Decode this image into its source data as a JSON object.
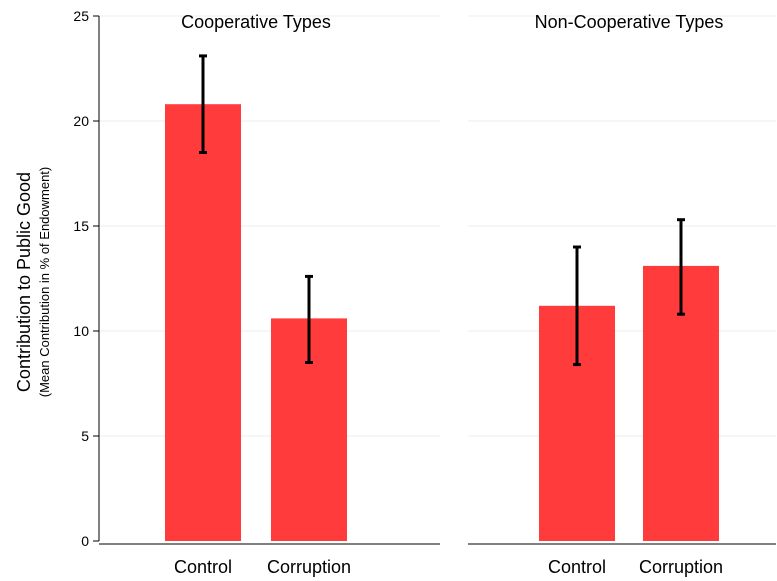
{
  "chart_data": {
    "type": "bar",
    "ylabel": "Contribution to Public Good",
    "ylabel_sub": "(Mean Contribution in % of Endowment)",
    "ylim": [
      0,
      25
    ],
    "yticks": [
      0,
      5,
      10,
      15,
      20,
      25
    ],
    "grid": true,
    "bar_color": "#ff3b3b",
    "errorbar_color": "#000000",
    "panels": [
      {
        "title": "Cooperative Types",
        "categories": [
          "Control",
          "Corruption"
        ],
        "values": [
          20.8,
          10.6
        ],
        "error_low": [
          18.5,
          8.5
        ],
        "error_high": [
          23.1,
          12.6
        ]
      },
      {
        "title": "Non-Cooperative Types",
        "categories": [
          "Control",
          "Corruption"
        ],
        "values": [
          11.2,
          13.1
        ],
        "error_low": [
          8.4,
          10.8
        ],
        "error_high": [
          14.0,
          15.3
        ]
      }
    ]
  }
}
